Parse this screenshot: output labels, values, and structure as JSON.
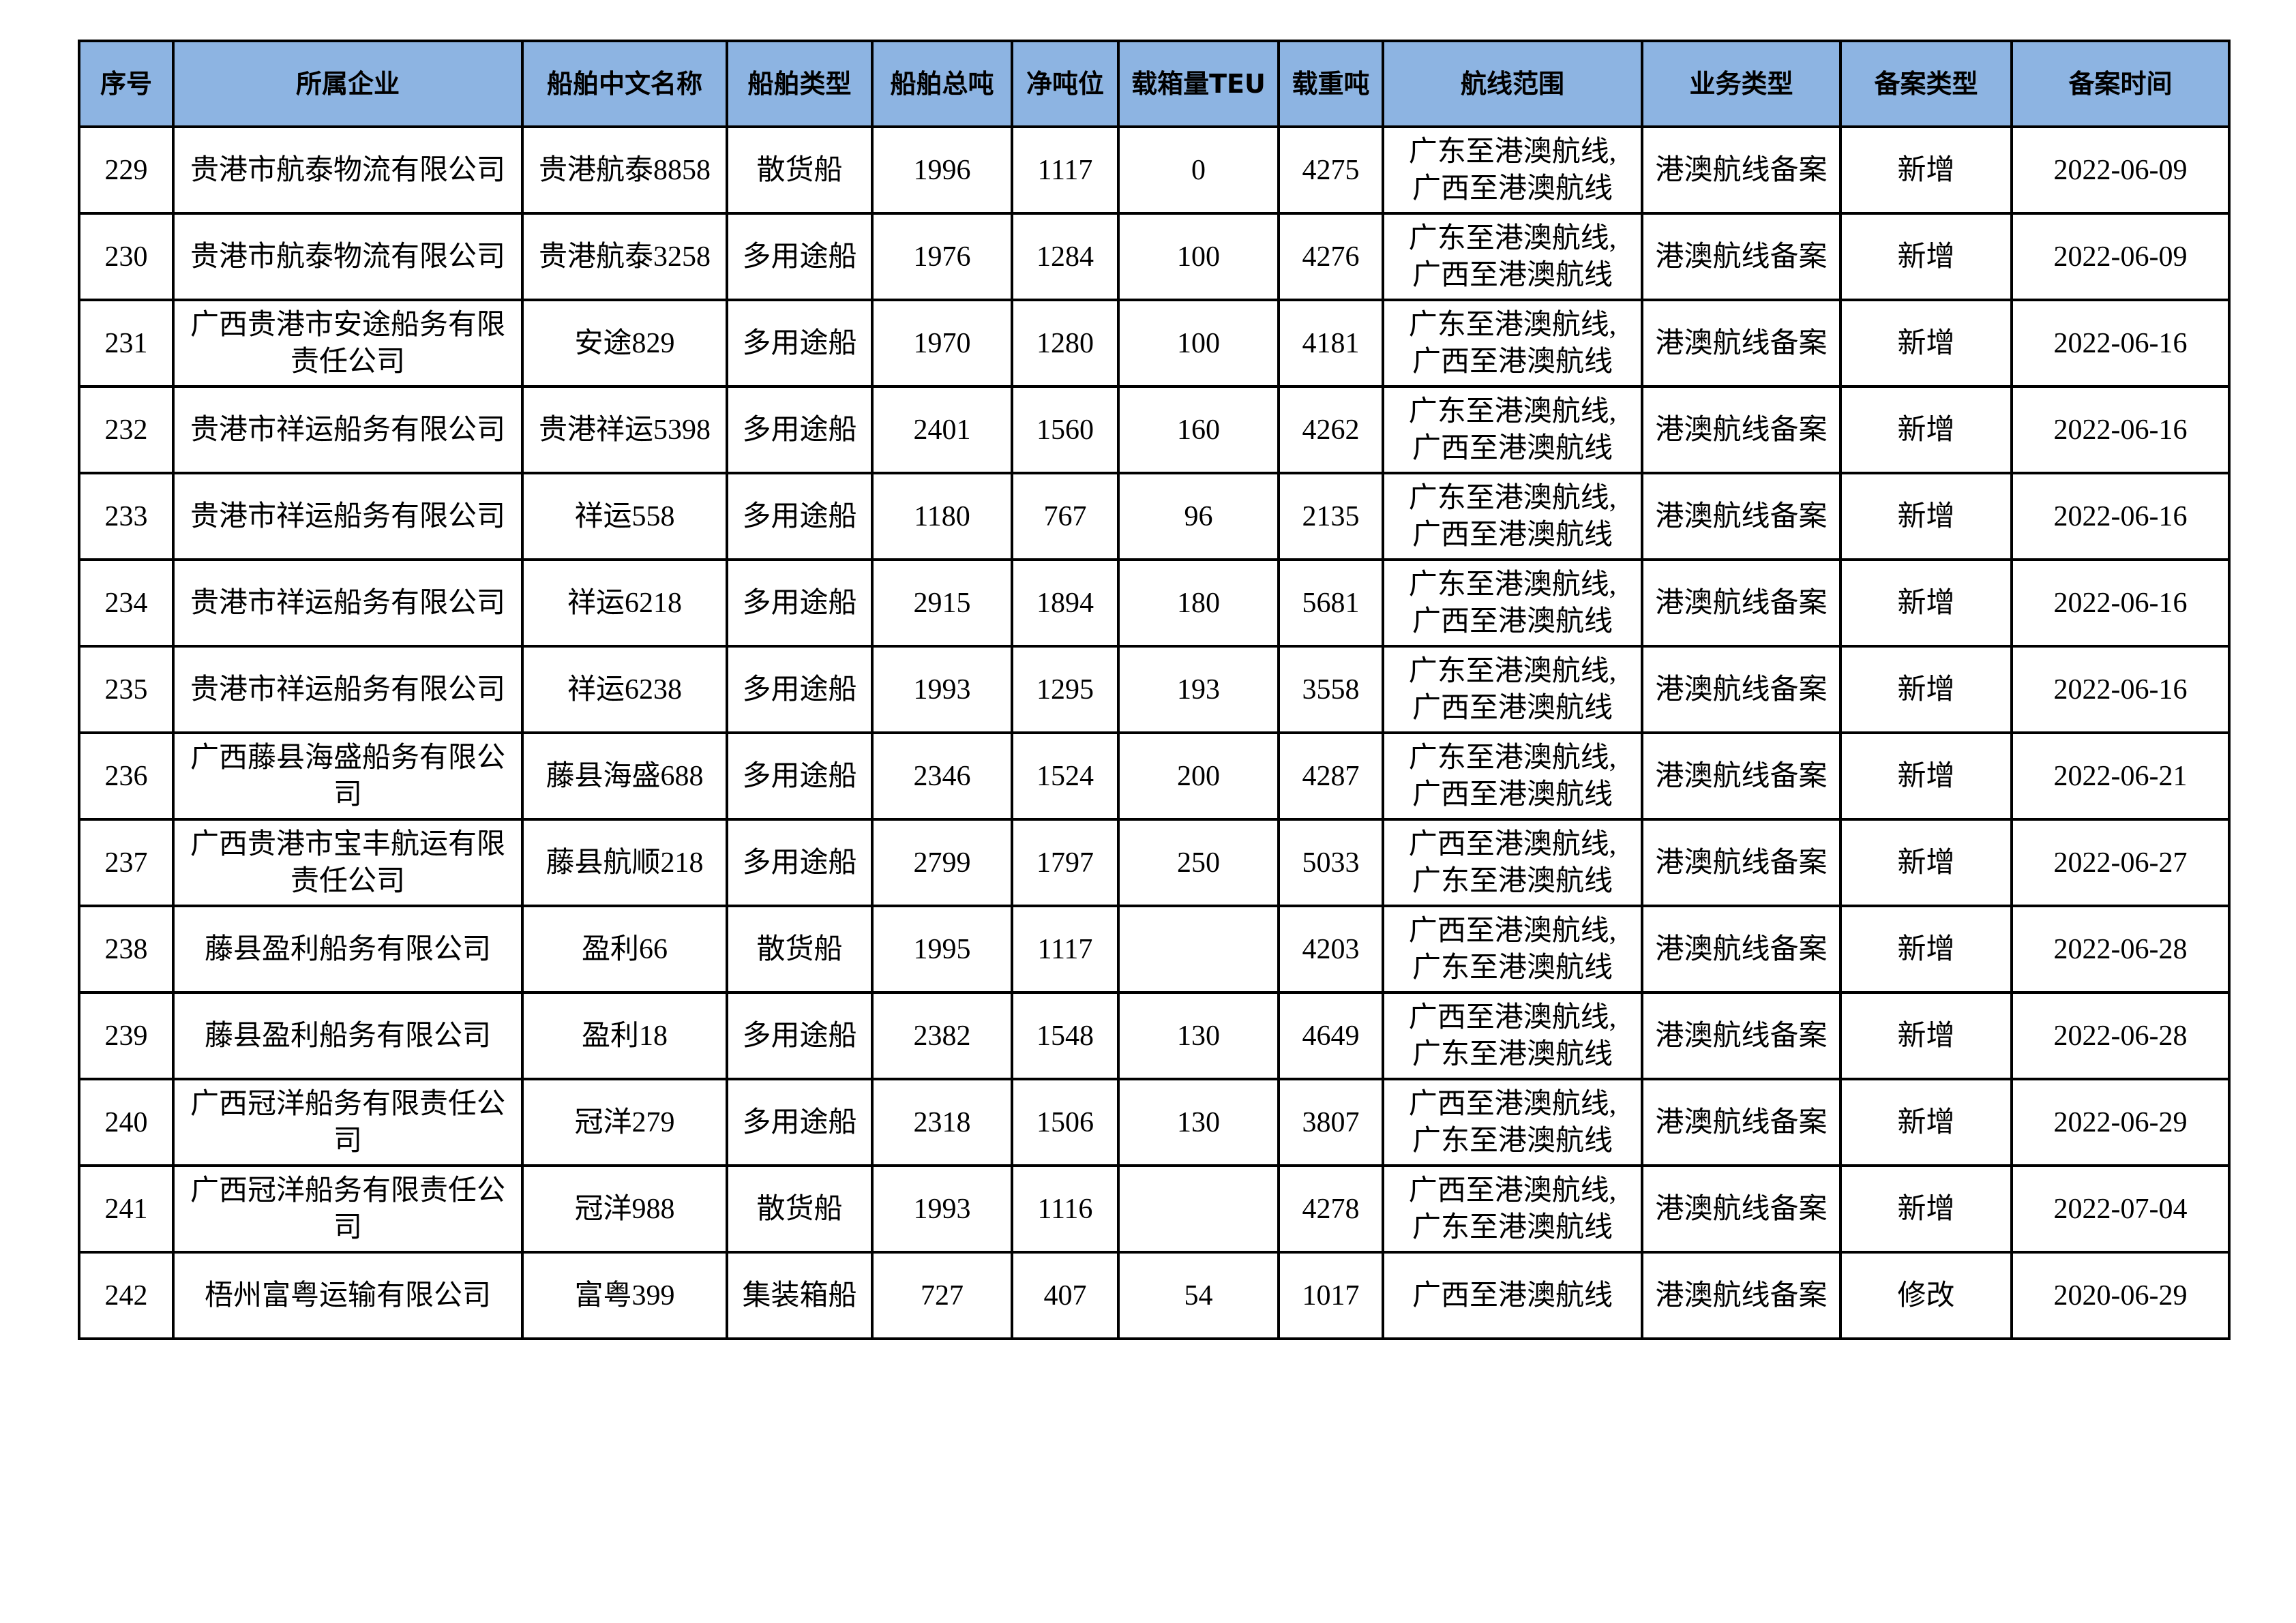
{
  "table": {
    "headers": [
      "序号",
      "所属企业",
      "船舶中文名称",
      "船舶类型",
      "船舶总吨",
      "净吨位",
      "载箱量TEU",
      "载重吨",
      "航线范围",
      "业务类型",
      "备案类型",
      "备案时间"
    ],
    "rows": [
      [
        "229",
        "贵港市航泰物流有限公司",
        "贵港航泰8858",
        "散货船",
        "1996",
        "1117",
        "0",
        "4275",
        "广东至港澳航线,\n广西至港澳航线",
        "港澳航线备案",
        "新增",
        "2022-06-09"
      ],
      [
        "230",
        "贵港市航泰物流有限公司",
        "贵港航泰3258",
        "多用途船",
        "1976",
        "1284",
        "100",
        "4276",
        "广东至港澳航线,\n广西至港澳航线",
        "港澳航线备案",
        "新增",
        "2022-06-09"
      ],
      [
        "231",
        "广西贵港市安途船务有限\n责任公司",
        "安途829",
        "多用途船",
        "1970",
        "1280",
        "100",
        "4181",
        "广东至港澳航线,\n广西至港澳航线",
        "港澳航线备案",
        "新增",
        "2022-06-16"
      ],
      [
        "232",
        "贵港市祥运船务有限公司",
        "贵港祥运5398",
        "多用途船",
        "2401",
        "1560",
        "160",
        "4262",
        "广东至港澳航线,\n广西至港澳航线",
        "港澳航线备案",
        "新增",
        "2022-06-16"
      ],
      [
        "233",
        "贵港市祥运船务有限公司",
        "祥运558",
        "多用途船",
        "1180",
        "767",
        "96",
        "2135",
        "广东至港澳航线,\n广西至港澳航线",
        "港澳航线备案",
        "新增",
        "2022-06-16"
      ],
      [
        "234",
        "贵港市祥运船务有限公司",
        "祥运6218",
        "多用途船",
        "2915",
        "1894",
        "180",
        "5681",
        "广东至港澳航线,\n广西至港澳航线",
        "港澳航线备案",
        "新增",
        "2022-06-16"
      ],
      [
        "235",
        "贵港市祥运船务有限公司",
        "祥运6238",
        "多用途船",
        "1993",
        "1295",
        "193",
        "3558",
        "广东至港澳航线,\n广西至港澳航线",
        "港澳航线备案",
        "新增",
        "2022-06-16"
      ],
      [
        "236",
        "广西藤县海盛船务有限公\n司",
        "藤县海盛688",
        "多用途船",
        "2346",
        "1524",
        "200",
        "4287",
        "广东至港澳航线,\n广西至港澳航线",
        "港澳航线备案",
        "新增",
        "2022-06-21"
      ],
      [
        "237",
        "广西贵港市宝丰航运有限\n责任公司",
        "藤县航顺218",
        "多用途船",
        "2799",
        "1797",
        "250",
        "5033",
        "广西至港澳航线,\n广东至港澳航线",
        "港澳航线备案",
        "新增",
        "2022-06-27"
      ],
      [
        "238",
        "藤县盈利船务有限公司",
        "盈利66",
        "散货船",
        "1995",
        "1117",
        "",
        "4203",
        "广西至港澳航线,\n广东至港澳航线",
        "港澳航线备案",
        "新增",
        "2022-06-28"
      ],
      [
        "239",
        "藤县盈利船务有限公司",
        "盈利18",
        "多用途船",
        "2382",
        "1548",
        "130",
        "4649",
        "广西至港澳航线,\n广东至港澳航线",
        "港澳航线备案",
        "新增",
        "2022-06-28"
      ],
      [
        "240",
        "广西冠洋船务有限责任公\n司",
        "冠洋279",
        "多用途船",
        "2318",
        "1506",
        "130",
        "3807",
        "广西至港澳航线,\n广东至港澳航线",
        "港澳航线备案",
        "新增",
        "2022-06-29"
      ],
      [
        "241",
        "广西冠洋船务有限责任公\n司",
        "冠洋988",
        "散货船",
        "1993",
        "1116",
        "",
        "4278",
        "广西至港澳航线,\n广东至港澳航线",
        "港澳航线备案",
        "新增",
        "2022-07-04"
      ],
      [
        "242",
        "梧州富粤运输有限公司",
        "富粤399",
        "集装箱船",
        "727",
        "407",
        "54",
        "1017",
        "广西至港澳航线",
        "港澳航线备案",
        "修改",
        "2020-06-29"
      ]
    ]
  },
  "colors": {
    "header_bg": "#8db4e2",
    "border": "#000000"
  }
}
